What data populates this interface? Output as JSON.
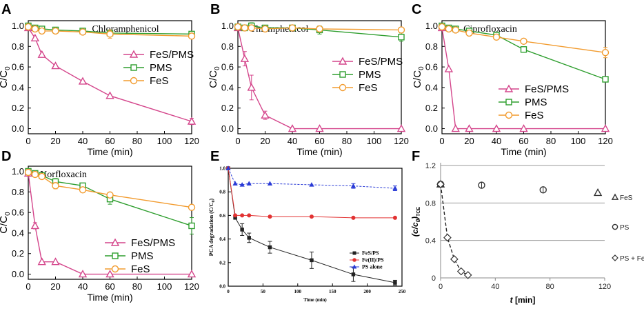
{
  "figure": {
    "background": "#ffffff"
  },
  "chart_data": [
    {
      "id": "A",
      "panel_label": "A",
      "type": "line",
      "title": "Chloramphenicol",
      "xlabel": "Time (min)",
      "ylabel": "C/C0",
      "ylabel_main": "C/C",
      "ylabel_sub": "0",
      "xlim": [
        0,
        120
      ],
      "ylim": [
        -0.05,
        1.05
      ],
      "xticks": [
        0,
        20,
        40,
        60,
        80,
        100,
        120
      ],
      "xtick_labels": [
        "0",
        "20",
        "40",
        "60",
        "80",
        "100",
        "120"
      ],
      "yticks": [
        0,
        0.2,
        0.4,
        0.6,
        0.8,
        1.0
      ],
      "ytick_labels": [
        "0.0",
        "0.2",
        "0.4",
        "0.6",
        "0.8",
        "1.0"
      ],
      "legend_position": "center-right",
      "series": [
        {
          "name": "FeS/PMS",
          "color": "#d4458b",
          "marker": "triangle",
          "x": [
            0,
            5,
            10,
            20,
            40,
            60,
            120
          ],
          "y": [
            0.98,
            0.88,
            0.72,
            0.61,
            0.46,
            0.32,
            0.07
          ]
        },
        {
          "name": "PMS",
          "color": "#2e9e2e",
          "marker": "square",
          "x": [
            0,
            5,
            10,
            20,
            40,
            60,
            120
          ],
          "y": [
            1.0,
            0.98,
            0.97,
            0.96,
            0.95,
            0.93,
            0.92
          ]
        },
        {
          "name": "FeS",
          "color": "#f29b2e",
          "marker": "circle",
          "x": [
            0,
            5,
            10,
            20,
            40,
            60,
            120
          ],
          "y": [
            0.99,
            0.97,
            0.95,
            0.95,
            0.94,
            0.92,
            0.9
          ]
        }
      ]
    },
    {
      "id": "B",
      "panel_label": "B",
      "type": "line",
      "title": "Thiamphenicol",
      "xlabel": "Time (min)",
      "ylabel": "C/C0",
      "ylabel_main": "C/C",
      "ylabel_sub": "0",
      "xlim": [
        0,
        120
      ],
      "ylim": [
        -0.05,
        1.05
      ],
      "xticks": [
        0,
        20,
        40,
        60,
        80,
        100,
        120
      ],
      "xtick_labels": [
        "0",
        "20",
        "40",
        "60",
        "80",
        "100",
        "120"
      ],
      "yticks": [
        0,
        0.2,
        0.4,
        0.6,
        0.8,
        1.0
      ],
      "ytick_labels": [
        "0.0",
        "0.2",
        "0.4",
        "0.6",
        "0.8",
        "1.0"
      ],
      "legend_position": "center-right",
      "series": [
        {
          "name": "FeS/PMS",
          "color": "#d4458b",
          "marker": "triangle",
          "x": [
            0,
            5,
            10,
            20,
            40,
            60,
            120
          ],
          "y": [
            0.98,
            0.68,
            0.4,
            0.13,
            0.0,
            0.0,
            0.0
          ]
        },
        {
          "name": "PMS",
          "color": "#2e9e2e",
          "marker": "square",
          "x": [
            0,
            5,
            10,
            20,
            40,
            60,
            120
          ],
          "y": [
            0.99,
            0.98,
            1.0,
            0.98,
            0.98,
            0.96,
            0.89
          ]
        },
        {
          "name": "FeS",
          "color": "#f29b2e",
          "marker": "circle",
          "x": [
            0,
            5,
            10,
            20,
            40,
            60,
            120
          ],
          "y": [
            0.99,
            0.98,
            0.98,
            0.97,
            0.98,
            0.97,
            0.96
          ]
        }
      ]
    },
    {
      "id": "C",
      "panel_label": "C",
      "type": "line",
      "title": "Ciprofloxacin",
      "xlabel": "Time (min)",
      "ylabel": "C/C0",
      "ylabel_main": "C/C",
      "ylabel_sub": "0",
      "xlim": [
        0,
        120
      ],
      "ylim": [
        -0.05,
        1.05
      ],
      "xticks": [
        0,
        20,
        40,
        60,
        80,
        100,
        120
      ],
      "xtick_labels": [
        "0",
        "20",
        "40",
        "60",
        "80",
        "100",
        "120"
      ],
      "yticks": [
        0,
        0.2,
        0.4,
        0.6,
        0.8,
        1.0
      ],
      "ytick_labels": [
        "0.0",
        "0.2",
        "0.4",
        "0.6",
        "0.8",
        "1.0"
      ],
      "legend_position": "bottom-left",
      "series": [
        {
          "name": "FeS/PMS",
          "color": "#d4458b",
          "marker": "triangle",
          "x": [
            0,
            5,
            10,
            20,
            40,
            60,
            120
          ],
          "y": [
            0.98,
            0.58,
            0.0,
            0.0,
            0.0,
            0.0,
            0.0
          ]
        },
        {
          "name": "PMS",
          "color": "#2e9e2e",
          "marker": "square",
          "x": [
            0,
            5,
            10,
            20,
            40,
            60,
            120
          ],
          "y": [
            1.0,
            0.98,
            0.97,
            0.95,
            0.91,
            0.77,
            0.48
          ]
        },
        {
          "name": "FeS",
          "color": "#f29b2e",
          "marker": "circle",
          "x": [
            0,
            5,
            10,
            20,
            40,
            60,
            120
          ],
          "y": [
            0.99,
            0.97,
            0.96,
            0.93,
            0.89,
            0.85,
            0.74
          ]
        }
      ]
    },
    {
      "id": "D",
      "panel_label": "D",
      "type": "line",
      "title": "Norfloxacin",
      "xlabel": "Time (min)",
      "ylabel": "C/C0",
      "ylabel_main": "C/C",
      "ylabel_sub": "0",
      "xlim": [
        0,
        120
      ],
      "ylim": [
        -0.05,
        1.05
      ],
      "xticks": [
        0,
        20,
        40,
        60,
        80,
        100,
        120
      ],
      "xtick_labels": [
        "0",
        "20",
        "40",
        "60",
        "80",
        "100",
        "120"
      ],
      "yticks": [
        0,
        0.2,
        0.4,
        0.6,
        0.8,
        1.0
      ],
      "ytick_labels": [
        "0.0",
        "0.2",
        "0.4",
        "0.6",
        "0.8",
        "1.0"
      ],
      "legend_position": "bottom-right",
      "series": [
        {
          "name": "FeS/PMS",
          "color": "#d4458b",
          "marker": "triangle",
          "x": [
            0,
            5,
            10,
            20,
            40,
            60,
            120
          ],
          "y": [
            0.98,
            0.47,
            0.12,
            0.12,
            0.0,
            0.0,
            0.0
          ]
        },
        {
          "name": "PMS",
          "color": "#2e9e2e",
          "marker": "square",
          "x": [
            0,
            5,
            10,
            20,
            40,
            60,
            120
          ],
          "y": [
            1.0,
            0.98,
            0.96,
            0.9,
            0.86,
            0.73,
            0.47
          ]
        },
        {
          "name": "FeS",
          "color": "#f29b2e",
          "marker": "circle",
          "x": [
            0,
            5,
            10,
            20,
            40,
            60,
            120
          ],
          "y": [
            0.99,
            0.97,
            0.95,
            0.86,
            0.82,
            0.77,
            0.65
          ]
        }
      ]
    },
    {
      "id": "E",
      "panel_label": "E",
      "type": "line",
      "title": "",
      "xlabel": "Time (min)",
      "ylabel": "PCA degradation (C/C0)",
      "ylabel_main": "PCA degradation (C/C",
      "ylabel_sub": "0",
      "ylabel_tail": ")",
      "xlim": [
        0,
        250
      ],
      "ylim": [
        0,
        1.0
      ],
      "xticks": [
        0,
        50,
        100,
        150,
        200,
        250
      ],
      "xtick_labels": [
        "0",
        "50",
        "100",
        "150",
        "200",
        "250"
      ],
      "yticks": [
        0,
        0.2,
        0.4,
        0.6,
        0.8,
        1.0
      ],
      "ytick_labels": [
        "0.0",
        "0.2",
        "0.4",
        "0.6",
        "0.8",
        "1.0"
      ],
      "legend_position": "bottom-right",
      "series": [
        {
          "name": "FeS/PS",
          "color": "#222222",
          "marker": "filled-square",
          "x": [
            0,
            10,
            20,
            30,
            60,
            120,
            180,
            240
          ],
          "y": [
            1.0,
            0.58,
            0.48,
            0.41,
            0.33,
            0.22,
            0.1,
            0.03
          ]
        },
        {
          "name": "Fe(II)/PS",
          "color": "#e23232",
          "marker": "filled-circle",
          "x": [
            0,
            10,
            20,
            30,
            60,
            120,
            180,
            240
          ],
          "y": [
            1.0,
            0.6,
            0.6,
            0.6,
            0.59,
            0.59,
            0.58,
            0.58
          ]
        },
        {
          "name": "PS alone",
          "color": "#2a3bd6",
          "marker": "filled-triangle",
          "x": [
            0,
            10,
            20,
            30,
            60,
            120,
            180,
            240
          ],
          "y": [
            1.0,
            0.87,
            0.86,
            0.87,
            0.87,
            0.86,
            0.85,
            0.83
          ]
        }
      ]
    },
    {
      "id": "F",
      "panel_label": "F",
      "type": "scatter",
      "title": "",
      "xlabel": "t [min]",
      "xlabel_main": "t",
      "xlabel_tail": " [min]",
      "ylabel": "(c/c0)TCE",
      "ylabel_main": "(c/c",
      "ylabel_sub0": "0",
      "ylabel_paren": ")",
      "ylabel_sub": "TCE",
      "xlim": [
        0,
        120
      ],
      "ylim": [
        0,
        1.2
      ],
      "xticks": [
        0,
        40,
        80,
        120
      ],
      "xtick_labels": [
        "0",
        "40",
        "80",
        "120"
      ],
      "yticks": [
        0,
        0.4,
        0.8,
        1.2
      ],
      "ytick_labels": [
        "0",
        "0.4",
        "0.8",
        "1.2"
      ],
      "legend_position": "right",
      "series": [
        {
          "name": "FeS",
          "marker": "open-triangle",
          "x": [
            0,
            115
          ],
          "y": [
            1.0,
            0.91
          ]
        },
        {
          "name": "PS",
          "marker": "open-circle",
          "x": [
            0,
            30,
            75
          ],
          "y": [
            1.0,
            0.99,
            0.94
          ]
        },
        {
          "name": "PS + FeS",
          "marker": "open-diamond",
          "x": [
            0,
            5,
            10,
            15,
            20
          ],
          "y": [
            1.0,
            0.43,
            0.2,
            0.07,
            0.03
          ]
        }
      ]
    }
  ]
}
